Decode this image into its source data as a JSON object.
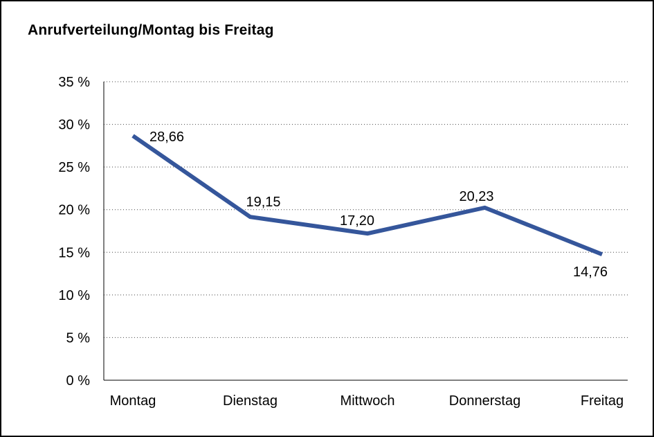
{
  "chart_data": {
    "type": "line",
    "title": "Anrufverteilung/Montag bis Freitag",
    "categories": [
      "Montag",
      "Dienstag",
      "Mittwoch",
      "Donnerstag",
      "Freitag"
    ],
    "values": [
      28.66,
      19.15,
      17.2,
      20.23,
      14.76
    ],
    "value_labels": [
      "28,66",
      "19,15",
      "17,20",
      "20,23",
      "14,76"
    ],
    "y_ticks": [
      "35 %",
      "30 %",
      "25 %",
      "20 %",
      "15 %",
      "10 %",
      "5 %",
      "0 %"
    ],
    "ylim": [
      0,
      35
    ],
    "y_step": 5,
    "xlabel": "",
    "ylabel": "",
    "grid": "horizontal-dotted",
    "legend": "none",
    "colors": {
      "line": "#35569b",
      "grid": "#444444",
      "axis": "#000000",
      "text": "#000000",
      "background": "#ffffff"
    }
  }
}
